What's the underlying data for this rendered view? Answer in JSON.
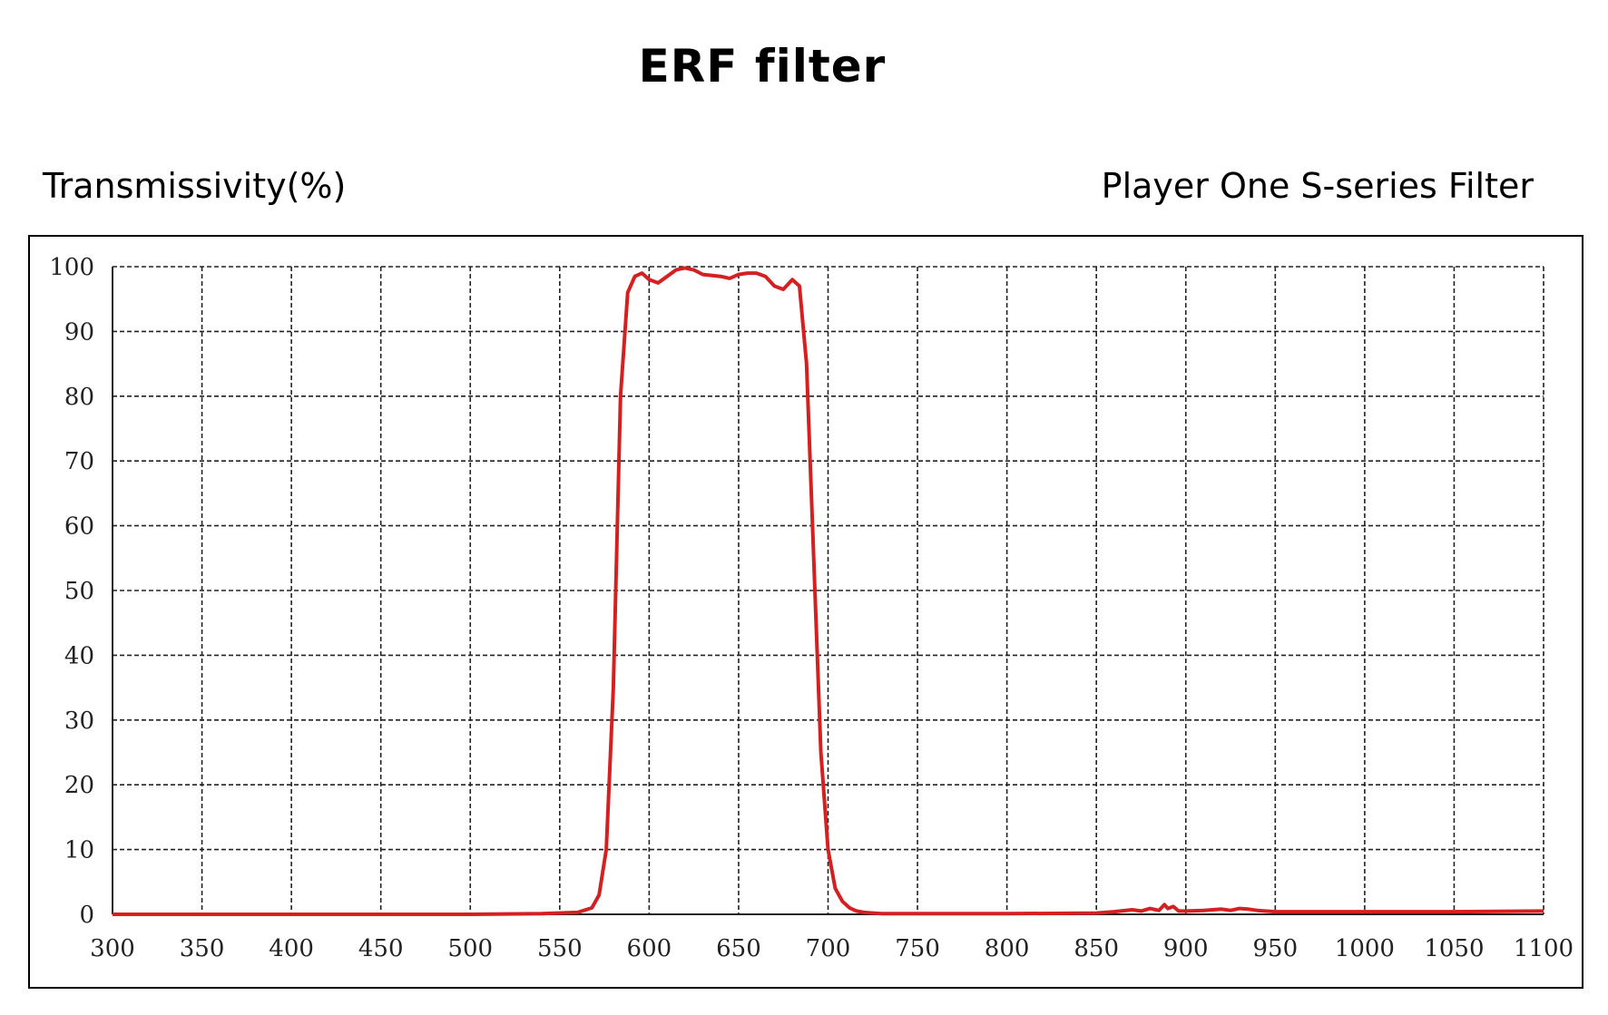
{
  "title": "ERF filter",
  "corner_label": "Player One S-series Filter",
  "chart_data": {
    "type": "line",
    "title": "ERF filter",
    "xlabel": "",
    "ylabel": "Transmissivity(%)",
    "xlim": [
      300,
      1100
    ],
    "ylim": [
      0,
      100
    ],
    "x_ticks": [
      300,
      350,
      400,
      450,
      500,
      550,
      600,
      650,
      700,
      750,
      800,
      850,
      900,
      950,
      1000,
      1050,
      1100
    ],
    "y_ticks": [
      0,
      10,
      20,
      30,
      40,
      50,
      60,
      70,
      80,
      90,
      100
    ],
    "grid": true,
    "line_color": "#d42020",
    "series": [
      {
        "x": [
          300,
          400,
          500,
          540,
          560,
          568,
          572,
          576,
          580,
          584,
          588,
          592,
          596,
          600,
          605,
          610,
          615,
          620,
          625,
          630,
          640,
          645,
          650,
          655,
          660,
          665,
          670,
          675,
          680,
          684,
          688,
          692,
          696,
          700,
          704,
          708,
          712,
          716,
          720,
          725,
          730,
          750,
          800,
          850,
          860,
          870,
          875,
          880,
          885,
          888,
          890,
          893,
          896,
          900,
          910,
          920,
          925,
          930,
          935,
          940,
          950,
          1000,
          1050,
          1100
        ],
        "y": [
          0,
          0,
          0,
          0.1,
          0.3,
          1,
          3,
          10,
          35,
          80,
          96,
          98.5,
          99,
          98,
          97.5,
          98.5,
          99.5,
          99.8,
          99.5,
          98.8,
          98.5,
          98.2,
          98.8,
          99,
          99,
          98.5,
          97,
          96.5,
          98,
          97,
          85,
          55,
          25,
          10,
          4,
          2,
          1,
          0.5,
          0.3,
          0.2,
          0.1,
          0.1,
          0.1,
          0.2,
          0.4,
          0.7,
          0.5,
          0.9,
          0.6,
          1.5,
          0.9,
          1.2,
          0.5,
          0.5,
          0.6,
          0.8,
          0.6,
          0.9,
          0.8,
          0.6,
          0.4,
          0.4,
          0.4,
          0.5
        ]
      }
    ]
  }
}
